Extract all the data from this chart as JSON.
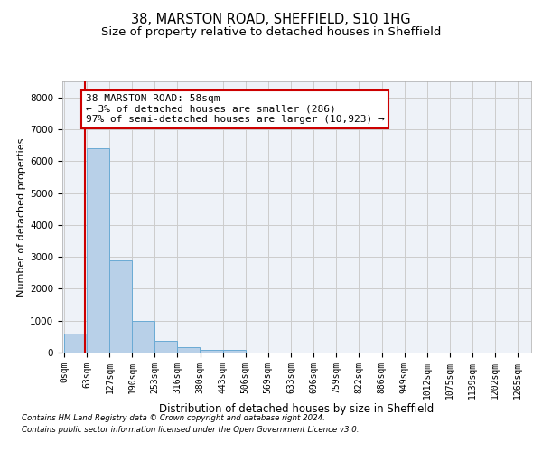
{
  "title1": "38, MARSTON ROAD, SHEFFIELD, S10 1HG",
  "title2": "Size of property relative to detached houses in Sheffield",
  "xlabel": "Distribution of detached houses by size in Sheffield",
  "ylabel": "Number of detached properties",
  "bin_edges": [
    0,
    63,
    127,
    190,
    253,
    316,
    380,
    443,
    506,
    569,
    633,
    696,
    759,
    822,
    886,
    949,
    1012,
    1075,
    1139,
    1202,
    1265
  ],
  "bin_labels": [
    "0sqm",
    "63sqm",
    "127sqm",
    "190sqm",
    "253sqm",
    "316sqm",
    "380sqm",
    "443sqm",
    "506sqm",
    "569sqm",
    "633sqm",
    "696sqm",
    "759sqm",
    "822sqm",
    "886sqm",
    "949sqm",
    "1012sqm",
    "1075sqm",
    "1139sqm",
    "1202sqm",
    "1265sqm"
  ],
  "bar_heights": [
    600,
    6400,
    2900,
    1000,
    380,
    170,
    90,
    90,
    0,
    0,
    0,
    0,
    0,
    0,
    0,
    0,
    0,
    0,
    0,
    0
  ],
  "bar_color": "#b8d0e8",
  "bar_edge_color": "#6aaad4",
  "property_line_x": 58,
  "property_line_color": "#cc0000",
  "annotation_line1": "38 MARSTON ROAD: 58sqm",
  "annotation_line2": "← 3% of detached houses are smaller (286)",
  "annotation_line3": "97% of semi-detached houses are larger (10,923) →",
  "annotation_box_color": "#cc0000",
  "ylim_max": 8500,
  "yticks": [
    0,
    1000,
    2000,
    3000,
    4000,
    5000,
    6000,
    7000,
    8000
  ],
  "grid_color": "#cccccc",
  "background_color": "#eef2f8",
  "footer1": "Contains HM Land Registry data © Crown copyright and database right 2024.",
  "footer2": "Contains public sector information licensed under the Open Government Licence v3.0.",
  "title1_fontsize": 10.5,
  "title2_fontsize": 9.5,
  "annotation_fontsize": 8,
  "tick_fontsize": 7,
  "ylabel_fontsize": 8,
  "xlabel_fontsize": 8.5
}
